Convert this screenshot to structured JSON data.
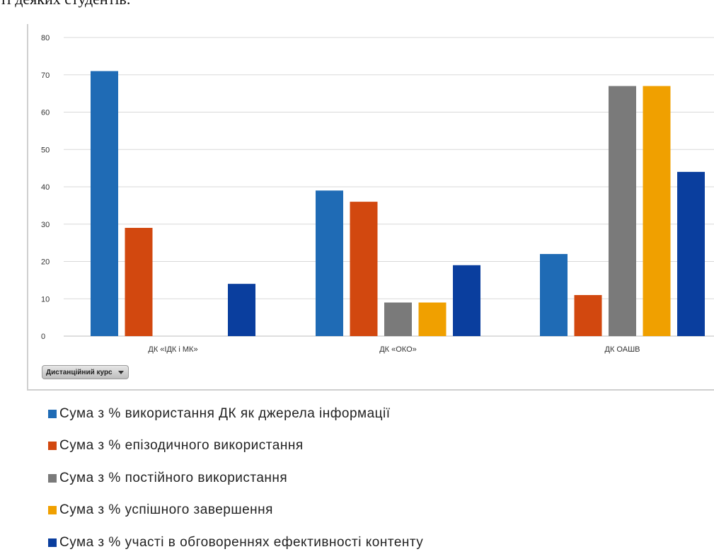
{
  "page": {
    "top_text": "ті деяких студентів."
  },
  "filter_button": {
    "label": "Дистанційний курс"
  },
  "chart_data": {
    "type": "bar",
    "categories": [
      "ДК «ІДК і МК»",
      "ДК «ОКО»",
      "ДК ОАШВ"
    ],
    "series": [
      {
        "name": "Сума з % використання ДК як джерела інформації",
        "color": "#1f6bb5",
        "values": [
          71,
          39,
          22
        ]
      },
      {
        "name": "Сума з % епізодичного використання",
        "color": "#d2480f",
        "values": [
          29,
          36,
          11
        ]
      },
      {
        "name": "Сума з % постійного використання",
        "color": "#7a7a7a",
        "values": [
          0,
          9,
          67
        ]
      },
      {
        "name": "Сума з % успішного завершення",
        "color": "#f0a000",
        "values": [
          0,
          9,
          67
        ]
      },
      {
        "name": "Сума з % участі в обговореннях ефективності контенту",
        "color": "#0a3e9e",
        "values": [
          14,
          19,
          44
        ]
      }
    ],
    "yticks": [
      "0",
      "10",
      "20",
      "30",
      "40",
      "50",
      "60",
      "70",
      "80"
    ],
    "ylim": [
      0,
      80
    ],
    "grid": true,
    "legend_position": "bottom"
  }
}
